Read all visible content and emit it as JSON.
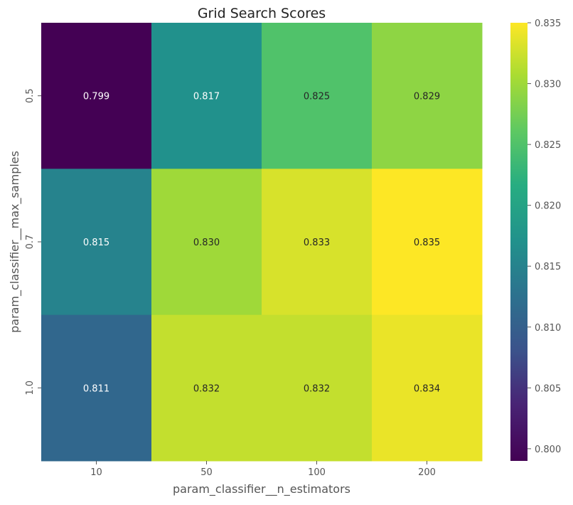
{
  "chart_data": {
    "type": "heatmap",
    "title": "Grid Search Scores",
    "xlabel": "param_classifier__n_estimators",
    "ylabel": "param_classifier__max_samples",
    "x_categories": [
      "10",
      "50",
      "100",
      "200"
    ],
    "y_categories": [
      "0.5",
      "0.7",
      "1.0"
    ],
    "values": [
      [
        0.799,
        0.817,
        0.825,
        0.829
      ],
      [
        0.815,
        0.83,
        0.833,
        0.835
      ],
      [
        0.811,
        0.832,
        0.832,
        0.834
      ]
    ],
    "cell_labels": [
      [
        "0.799",
        "0.817",
        "0.825",
        "0.829"
      ],
      [
        "0.815",
        "0.830",
        "0.833",
        "0.835"
      ],
      [
        "0.811",
        "0.832",
        "0.832",
        "0.834"
      ]
    ],
    "colorbar": {
      "min": 0.799,
      "max": 0.835,
      "ticks": [
        "0.800",
        "0.805",
        "0.810",
        "0.815",
        "0.820",
        "0.825",
        "0.830",
        "0.835"
      ],
      "colormap": "viridis"
    }
  }
}
